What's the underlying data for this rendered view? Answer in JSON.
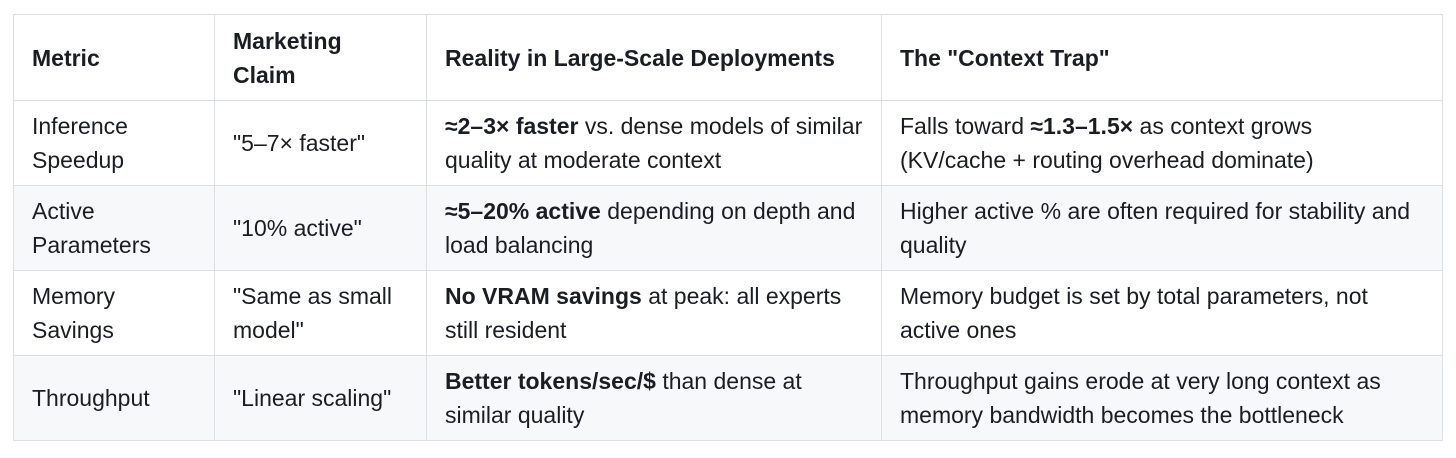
{
  "table": {
    "headers": {
      "metric": "Metric",
      "claim": "Marketing Claim",
      "reality": "Reality in Large-Scale Deployments",
      "trap": "The \"Context Trap\""
    },
    "rows": [
      {
        "metric": "Inference Speedup",
        "claim": "\"5–7× faster\"",
        "reality_bold": "≈2–3× faster",
        "reality_rest": " vs. dense models of similar quality at moderate context",
        "trap_prefix": "Falls toward ",
        "trap_bold": "≈1.3–1.5×",
        "trap_rest": " as context grows (KV/cache + routing overhead dominate)"
      },
      {
        "metric": "Active Parameters",
        "claim": "\"10% active\"",
        "reality_bold": "≈5–20% active",
        "reality_rest": " depending on depth and load balancing",
        "trap_prefix": "Higher active % are often required for stability and quality",
        "trap_bold": "",
        "trap_rest": ""
      },
      {
        "metric": "Memory Savings",
        "claim": "\"Same as small model\"",
        "reality_bold": "No VRAM savings",
        "reality_rest": " at peak: all experts still resident",
        "trap_prefix": "Memory budget is set by total parameters, not active ones",
        "trap_bold": "",
        "trap_rest": ""
      },
      {
        "metric": "Throughput",
        "claim": "\"Linear scaling\"",
        "reality_bold": "Better tokens/sec/$",
        "reality_rest": " than dense at similar quality",
        "trap_prefix": "Throughput gains erode at very long context as memory bandwidth becomes the bottleneck",
        "trap_bold": "",
        "trap_rest": ""
      }
    ]
  },
  "colors": {
    "text": "#1a1d23",
    "border": "#dce0e5",
    "row_stripe": "#f6f8fa",
    "background": "#ffffff"
  }
}
